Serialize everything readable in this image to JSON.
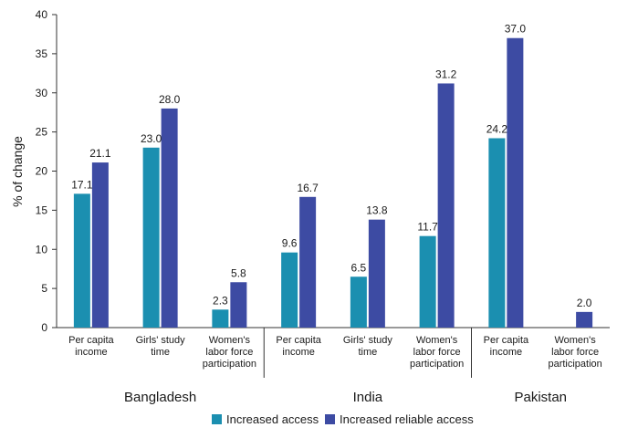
{
  "chart_data": {
    "type": "bar",
    "ylabel": "% of change",
    "ylim": [
      0,
      40
    ],
    "yticks": [
      0,
      5,
      10,
      15,
      20,
      25,
      30,
      35,
      40
    ],
    "legend_position": "bottom",
    "groups": [
      {
        "name": "Bangladesh",
        "categories": [
          {
            "label": [
              "Per capita",
              "income"
            ],
            "values": [
              17.1,
              21.1
            ]
          },
          {
            "label": [
              "Girls' study",
              "time"
            ],
            "values": [
              23.0,
              28.0
            ]
          },
          {
            "label": [
              "Women's",
              "labor force",
              "participation"
            ],
            "values": [
              2.3,
              5.8
            ]
          }
        ]
      },
      {
        "name": "India",
        "categories": [
          {
            "label": [
              "Per capita",
              "income"
            ],
            "values": [
              9.6,
              16.7
            ]
          },
          {
            "label": [
              "Girls' study",
              "time"
            ],
            "values": [
              6.5,
              13.8
            ]
          },
          {
            "label": [
              "Women's",
              "labor force",
              "participation"
            ],
            "values": [
              11.7,
              31.2
            ]
          }
        ]
      },
      {
        "name": "Pakistan",
        "categories": [
          {
            "label": [
              "Per capita",
              "income"
            ],
            "values": [
              24.2,
              37.0
            ]
          },
          {
            "label": [
              "Women's",
              "labor force",
              "participation"
            ],
            "values": [
              null,
              2.0
            ]
          }
        ]
      }
    ],
    "series": [
      {
        "name": "Increased access",
        "color": "#1b8fb0"
      },
      {
        "name": "Increased reliable access",
        "color": "#3d4ba3"
      }
    ]
  }
}
